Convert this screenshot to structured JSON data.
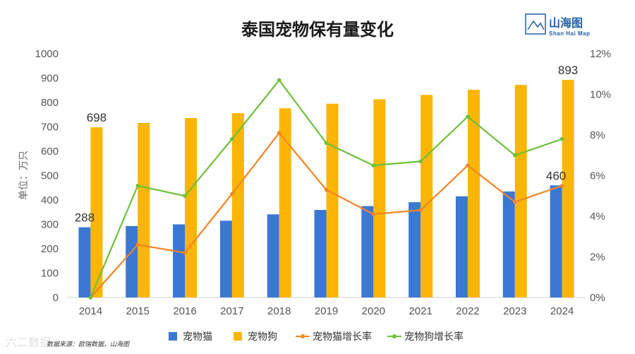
{
  "chart_data": {
    "type": "bar",
    "title": "泰国宠物保有量变化",
    "ylabel": "单位：万只",
    "categories": [
      "2014",
      "2015",
      "2016",
      "2017",
      "2018",
      "2019",
      "2020",
      "2021",
      "2022",
      "2023",
      "2024"
    ],
    "ylim": [
      0,
      1000
    ],
    "y2lim": [
      0,
      12
    ],
    "yticks": [
      "0",
      "100",
      "200",
      "300",
      "400",
      "500",
      "600",
      "700",
      "800",
      "900",
      "1000"
    ],
    "y2ticks": [
      "0%",
      "2%",
      "4%",
      "6%",
      "8%",
      "10%",
      "12%"
    ],
    "series": [
      {
        "name": "宠物猫",
        "kind": "bar",
        "axis": "left",
        "color": "#3a78d4",
        "values": [
          288,
          293,
          300,
          315,
          341,
          359,
          375,
          391,
          415,
          435,
          460
        ]
      },
      {
        "name": "宠物狗",
        "kind": "bar",
        "axis": "left",
        "color": "#fbb605",
        "values": [
          698,
          716,
          736,
          756,
          776,
          795,
          813,
          831,
          852,
          872,
          893
        ]
      },
      {
        "name": "宠物猫增长率",
        "kind": "line",
        "axis": "right",
        "color": "#f28526",
        "values": [
          0,
          2.6,
          2.2,
          5.1,
          8.1,
          5.3,
          4.1,
          4.3,
          6.5,
          4.7,
          5.5
        ]
      },
      {
        "name": "宠物狗增长率",
        "kind": "line",
        "axis": "right",
        "color": "#6cc13a",
        "values": [
          0,
          5.5,
          5.0,
          7.8,
          10.7,
          7.6,
          6.5,
          6.7,
          8.9,
          7.0,
          7.8
        ]
      }
    ],
    "data_labels": [
      {
        "series": 0,
        "index": 0,
        "text": "288"
      },
      {
        "series": 1,
        "index": 0,
        "text": "698"
      },
      {
        "series": 0,
        "index": 10,
        "text": "460"
      },
      {
        "series": 1,
        "index": 10,
        "text": "893"
      }
    ],
    "legend_position": "bottom",
    "grid": false
  },
  "source_text": "数据来源：欧瑞数据，山海图",
  "logo": {
    "cn": "山海图",
    "en": "Shan Hai Map"
  },
  "watermark": "六二数据"
}
